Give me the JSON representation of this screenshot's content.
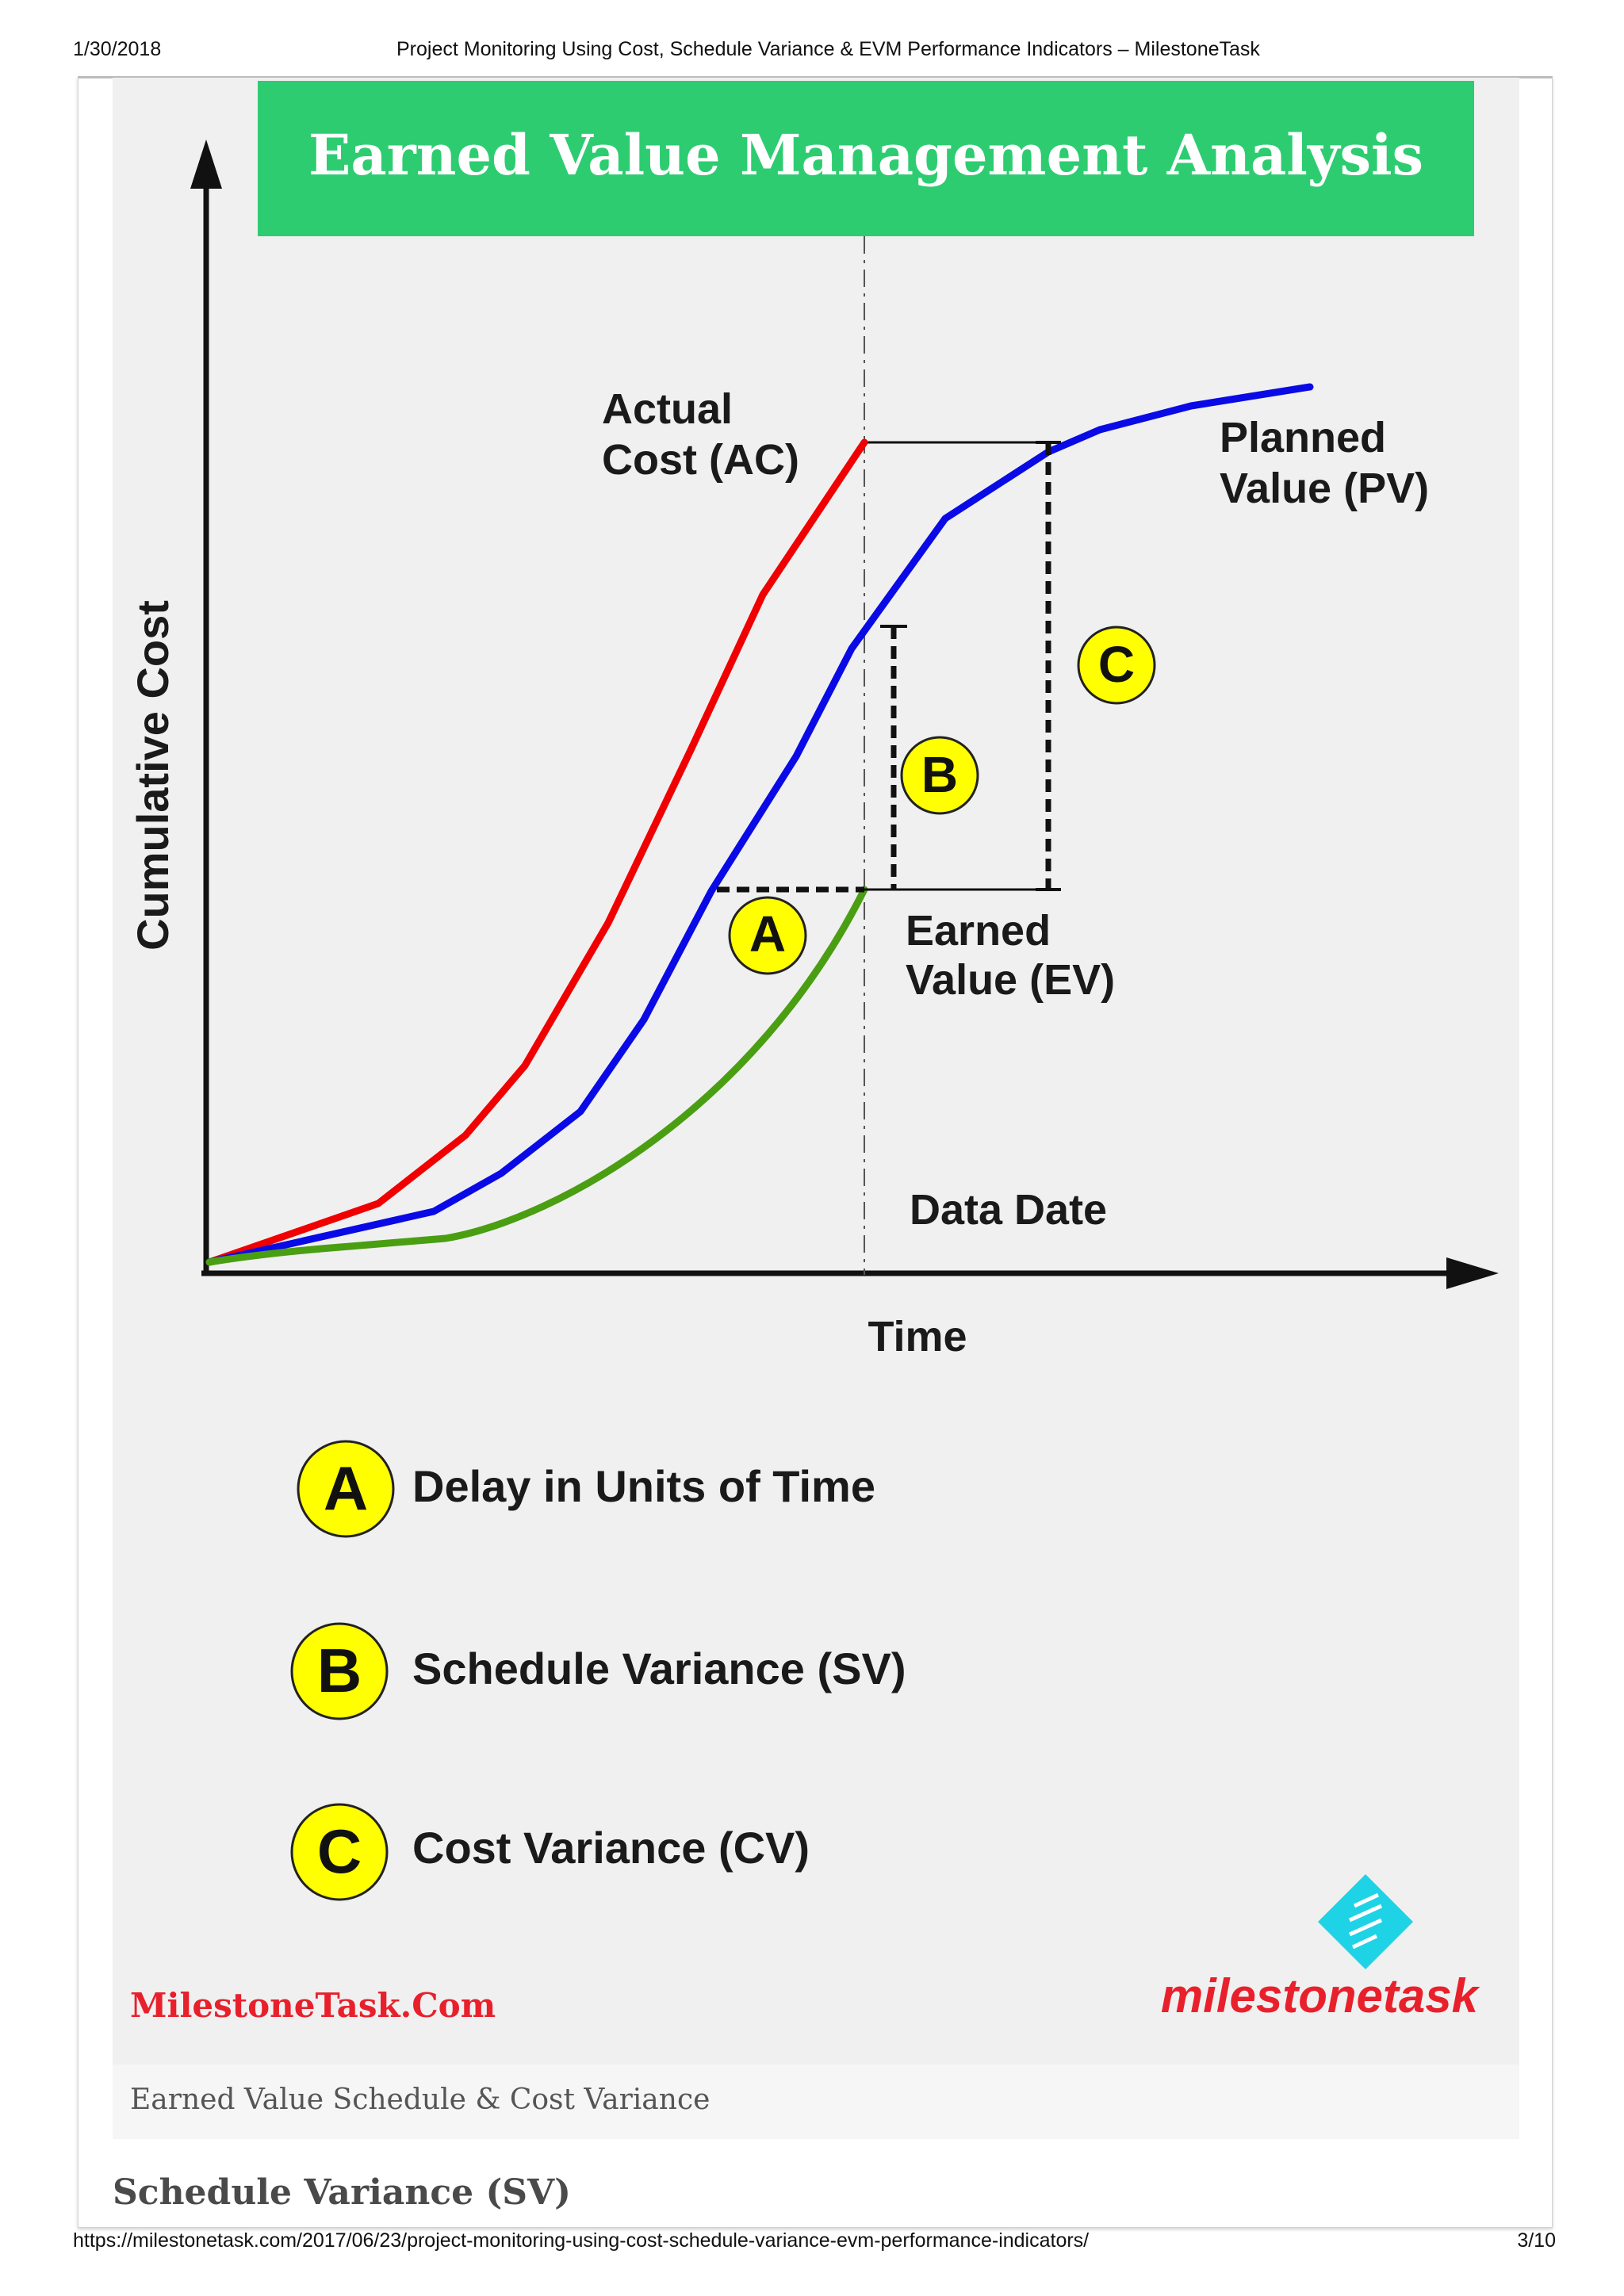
{
  "print_header": {
    "date": "1/30/2018",
    "title": "Project Monitoring Using Cost, Schedule Variance & EVM Performance Indicators – MilestoneTask"
  },
  "print_footer": {
    "url": "https://milestonetask.com/2017/06/23/project-monitoring-using-cost-schedule-variance-evm-performance-indicators/",
    "page": "3/10"
  },
  "figure": {
    "banner_title": "Earned Value Management Analysis",
    "y_axis_label": "Cumulative Cost",
    "x_axis_label": "Time",
    "data_date_label": "Data Date",
    "curves": {
      "ac": {
        "line1": "Actual",
        "line2": "Cost (AC)",
        "color": "#f00000"
      },
      "pv": {
        "line1": "Planned",
        "line2": "Value (PV)",
        "color": "#0a0ae6"
      },
      "ev": {
        "line1": "Earned",
        "line2": "Value (EV)",
        "color": "#4a9e12"
      }
    },
    "markers": {
      "a": "A",
      "b": "B",
      "c": "C"
    },
    "marker_color": "#ffff00",
    "banner_color": "#2ecc71",
    "legend": [
      {
        "marker": "A",
        "text": "Delay in Units of Time"
      },
      {
        "marker": "B",
        "text": "Schedule Variance (SV)"
      },
      {
        "marker": "C",
        "text": "Cost Variance (CV)"
      }
    ],
    "watermark_text": "MilestoneTask.Com",
    "logo_text": "milestonetask",
    "brand_color": "#e8202c",
    "logo_icon_color": "#1fd3e6"
  },
  "caption": "Earned Value Schedule & Cost Variance",
  "section_heading": "Schedule Variance (SV)"
}
